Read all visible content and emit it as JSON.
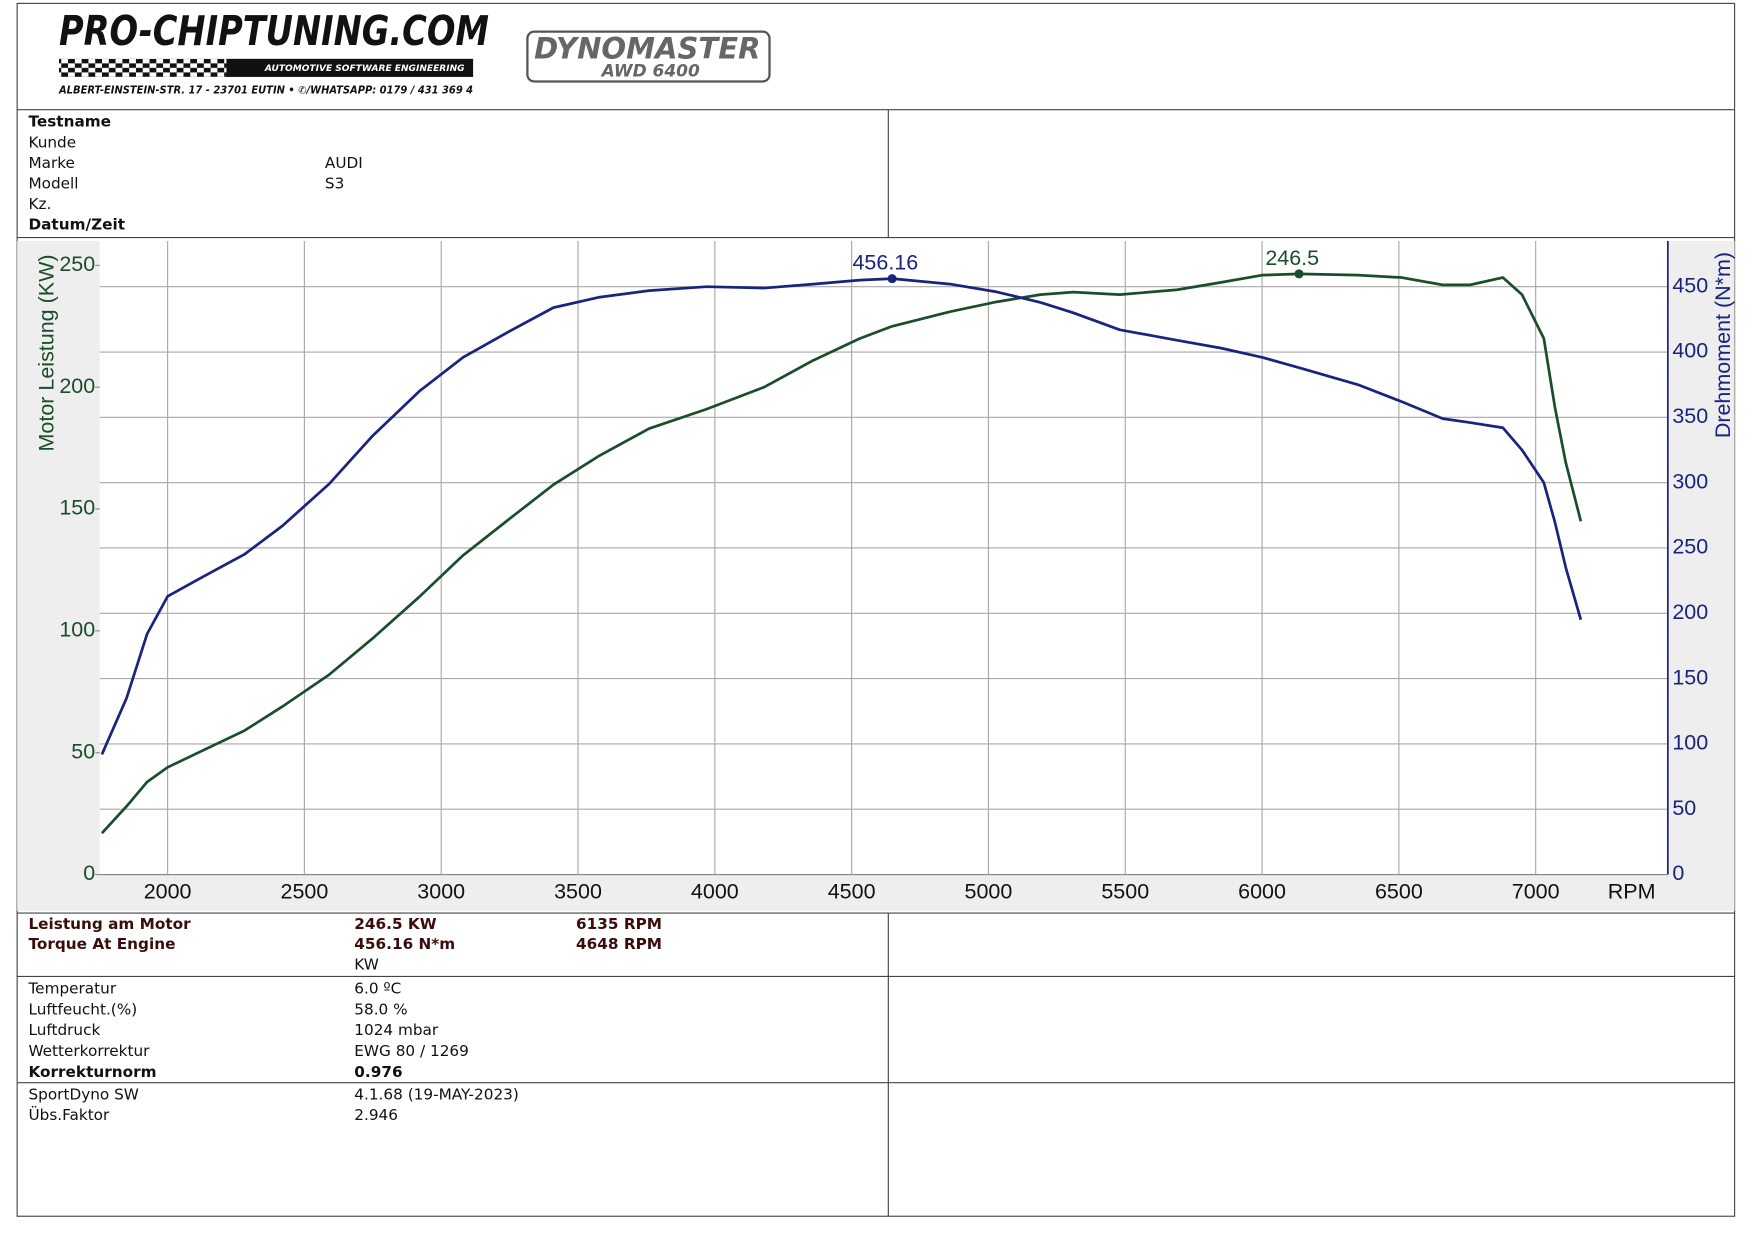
{
  "header": {
    "logo": "PRO-CHIPTUNING.COM",
    "tagline": "AUTOMOTIVE SOFTWARE ENGINEERING",
    "address": "ALBERT-EINSTEIN-STR. 17 - 23701 EUTIN • ✆/WHATSAPP: 0179 / 431 369 4",
    "dyno": "DYNOMASTER",
    "dyno_model": "AWD 6400"
  },
  "info": {
    "rows": [
      {
        "label": "Testname"
      },
      {
        "label": "Kunde"
      },
      {
        "label": "Marke",
        "value": "AUDI"
      },
      {
        "label": "Modell",
        "value": "S3"
      },
      {
        "label": "Kz."
      },
      {
        "label": "Datum/Zeit"
      }
    ]
  },
  "results": {
    "rows": [
      {
        "label": "Leistung am Motor",
        "value": "246.5 KW",
        "rpm": "6135 RPM"
      },
      {
        "label": "Torque At Engine",
        "value": "456.16 N*m",
        "rpm": "4648 RPM"
      },
      {
        "value": "KW"
      }
    ]
  },
  "conditions": {
    "rows": [
      {
        "label": "Temperatur",
        "value": "6.0 ºC"
      },
      {
        "label": "Luftfeucht.(%)",
        "value": "58.0 %"
      },
      {
        "label": "Luftdruck",
        "value": "1024 mbar"
      },
      {
        "label": "Wetterkorrektur",
        "value": "EWG 80 / 1269"
      },
      {
        "label": "Korrekturnorm",
        "value": "0.976"
      }
    ]
  },
  "software": {
    "rows": [
      {
        "label": "SportDyno SW",
        "value": "4.1.68 (19-MAY-2023)"
      },
      {
        "label": "Übs.Faktor",
        "value": "2.946"
      }
    ]
  },
  "chart_data": {
    "type": "line",
    "y_label": "Motor Leistung (KW)",
    "y2_label": "Drehmoment (N*m)",
    "x_label": "RPM",
    "x": [
      1760,
      1850,
      1925,
      2000,
      2130,
      2280,
      2420,
      2590,
      2750,
      2920,
      3080,
      3250,
      3410,
      3580,
      3760,
      3970,
      4180,
      4360,
      4530,
      4648,
      4860,
      5030,
      5190,
      5310,
      5480,
      5690,
      5850,
      6000,
      6135,
      6350,
      6510,
      6660,
      6760,
      6880,
      6950,
      7030,
      7070,
      7110,
      7165
    ],
    "series": [
      {
        "name": "Motor Leistung (KW)",
        "color": "#1b4d2c",
        "axis": "y",
        "values": [
          17,
          28,
          38,
          44,
          51,
          59,
          69,
          82,
          97,
          114,
          131,
          146,
          160,
          172,
          183,
          191,
          200,
          211,
          220,
          225,
          231,
          235,
          238,
          239,
          238,
          240,
          243,
          246,
          246.5,
          246,
          245,
          242,
          242,
          245,
          238,
          220,
          192,
          169,
          145
        ]
      },
      {
        "name": "Drehmoment (N*m)",
        "color": "#1a237e",
        "axis": "y2",
        "values": [
          92,
          135,
          184,
          213,
          228,
          245,
          267,
          299,
          336,
          370,
          396,
          416,
          434,
          442,
          447,
          450,
          449,
          452,
          455,
          456.16,
          452,
          446,
          438,
          430,
          417,
          409,
          403,
          396,
          388,
          375,
          362,
          349,
          346,
          342,
          325,
          300,
          270,
          235,
          195
        ]
      }
    ],
    "annotations": [
      {
        "label": "456.16",
        "x": 4648,
        "value": 456.16,
        "series": 1
      },
      {
        "label": "246.5",
        "x": 6135,
        "value": 246.5,
        "series": 0
      }
    ],
    "xlim": [
      1752,
      7483
    ],
    "xticks": [
      2000,
      2500,
      3000,
      3500,
      4000,
      4500,
      5000,
      5500,
      6000,
      6500,
      7000
    ],
    "ylim": [
      0,
      260
    ],
    "yticks": [
      0,
      50,
      100,
      150,
      200,
      250
    ],
    "y2lim": [
      0,
      485
    ],
    "y2ticks": [
      0,
      50,
      100,
      150,
      200,
      250,
      300,
      350,
      400,
      450
    ],
    "grid": true
  }
}
